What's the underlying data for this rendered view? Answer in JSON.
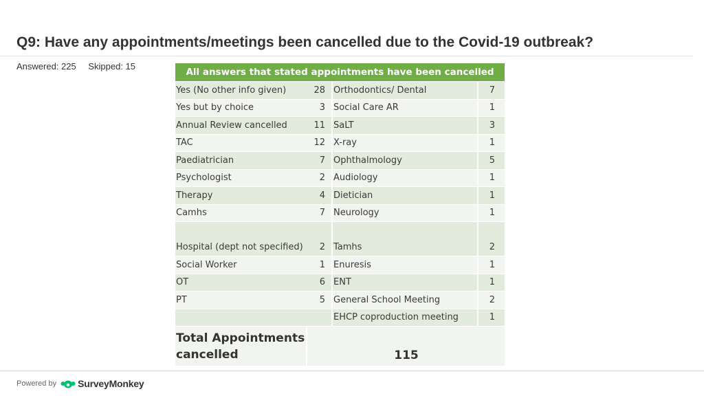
{
  "title": "Q9: Have any appointments/meetings been cancelled due to the Covid-19 outbreak?",
  "stats": {
    "answered": "Answered: 225",
    "skipped": "Skipped: 15"
  },
  "table": {
    "header": "All answers that stated appointments have been cancelled",
    "rows": [
      {
        "left_label": "Yes (No other info given)",
        "left_value": "28",
        "right_label": "Orthodontics/ Dental",
        "right_value": "7"
      },
      {
        "left_label": "Yes but by choice",
        "left_value": "3",
        "right_label": "Social Care AR",
        "right_value": "1"
      },
      {
        "left_label": "Annual Review cancelled",
        "left_value": "11",
        "right_label": "SaLT",
        "right_value": "3"
      },
      {
        "left_label": "TAC",
        "left_value": "12",
        "right_label": "X-ray",
        "right_value": "1"
      },
      {
        "left_label": "Paediatrician",
        "left_value": "7",
        "right_label": "Ophthalmology",
        "right_value": "5"
      },
      {
        "left_label": "Psychologist",
        "left_value": "2",
        "right_label": "Audiology",
        "right_value": "1"
      },
      {
        "left_label": "Therapy",
        "left_value": "4",
        "right_label": "Dietician",
        "right_value": "1"
      },
      {
        "left_label": "Camhs",
        "left_value": "7",
        "right_label": "Neurology",
        "right_value": "1"
      },
      {
        "left_label": "Hospital (dept not specified)",
        "left_value": "2",
        "right_label": "Tamhs",
        "right_value": "2"
      },
      {
        "left_label": "Social Worker",
        "left_value": "1",
        "right_label": "Enuresis",
        "right_value": "1"
      },
      {
        "left_label": "OT",
        "left_value": "6",
        "right_label": "ENT",
        "right_value": "1"
      },
      {
        "left_label": "PT",
        "left_value": "5",
        "right_label": "General School Meeting",
        "right_value": "2"
      },
      {
        "left_label": "",
        "left_value": "",
        "right_label": "EHCP coproduction meeting",
        "right_value": "1"
      }
    ],
    "total_label": "Total Appointments cancelled",
    "total_value": "115"
  },
  "footer": {
    "powered_by": "Powered by",
    "brand": "SurveyMonkey"
  },
  "colors": {
    "header_green": "#70ad47",
    "row_dark": "#e3ebdc",
    "row_light": "#f2f5ef",
    "logo_green": "#00bf6f"
  }
}
